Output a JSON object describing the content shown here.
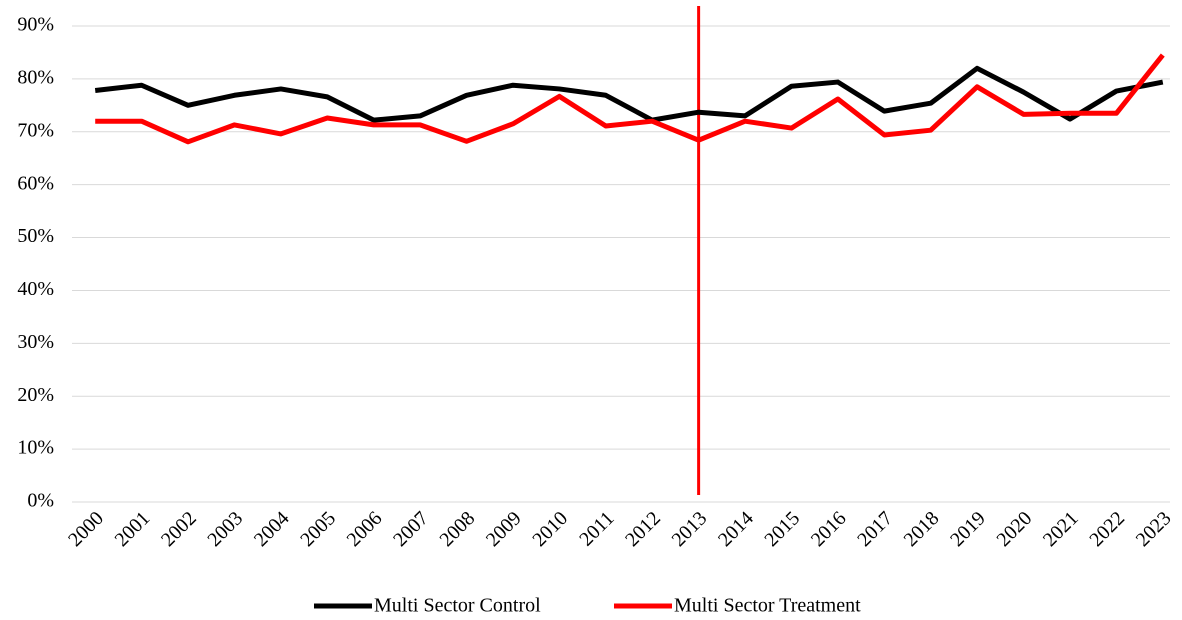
{
  "chart_data": {
    "type": "line",
    "categories": [
      "2000",
      "2001",
      "2002",
      "2003",
      "2004",
      "2005",
      "2006",
      "2007",
      "2008",
      "2009",
      "2010",
      "2011",
      "2012",
      "2013",
      "2014",
      "2015",
      "2016",
      "2017",
      "2018",
      "2019",
      "2020",
      "2021",
      "2022",
      "2023"
    ],
    "series": [
      {
        "name": "Multi Sector Control",
        "color": "#000000",
        "values": [
          77.8,
          78.8,
          75.0,
          76.9,
          78.1,
          76.6,
          72.2,
          73.0,
          76.9,
          78.8,
          78.1,
          76.9,
          72.2,
          73.7,
          73.0,
          78.6,
          79.4,
          73.9,
          75.4,
          82.0,
          77.5,
          72.4,
          77.7,
          79.4
        ]
      },
      {
        "name": "Multi Sector Treatment",
        "color": "#ff0000",
        "values": [
          72.0,
          72.0,
          68.1,
          71.3,
          69.6,
          72.6,
          71.3,
          71.3,
          68.2,
          71.5,
          76.7,
          71.1,
          72.0,
          68.4,
          72.0,
          70.7,
          76.2,
          69.4,
          70.3,
          78.5,
          73.3,
          73.5,
          73.5,
          84.5
        ]
      }
    ],
    "reference_line": {
      "x": "2013",
      "color": "#ff0000"
    },
    "ylim": [
      0,
      90
    ],
    "yticks": [
      {
        "value": 0,
        "label": "0%"
      },
      {
        "value": 10,
        "label": "10%"
      },
      {
        "value": 20,
        "label": "20%"
      },
      {
        "value": 30,
        "label": "30%"
      },
      {
        "value": 40,
        "label": "40%"
      },
      {
        "value": 50,
        "label": "50%"
      },
      {
        "value": 60,
        "label": "60%"
      },
      {
        "value": 70,
        "label": "70%"
      },
      {
        "value": 80,
        "label": "80%"
      },
      {
        "value": 90,
        "label": "90%"
      }
    ],
    "grid": true,
    "legend": "bottom"
  }
}
